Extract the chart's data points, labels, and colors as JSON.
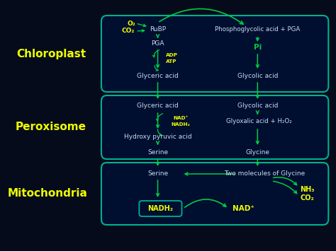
{
  "bg_color": "#060b1c",
  "box_bg": "#000e30",
  "box_border": "#00b090",
  "arrow_color": "#00cc44",
  "text_white": "#c8dff0",
  "text_yellow": "#eeff00",
  "figsize": [
    4.74,
    3.55
  ],
  "dpi": 100,
  "label_chloroplast": "Chloroplast",
  "label_peroxisome": "Peroxisome",
  "label_mitochondria": "Mitochondria"
}
